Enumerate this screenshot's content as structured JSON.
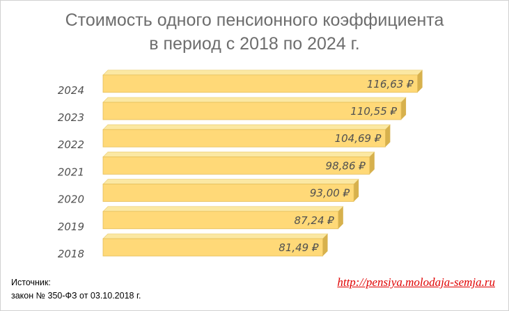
{
  "chart_data": {
    "type": "bar",
    "orientation": "horizontal",
    "title_lines": [
      "Стоимость одного пенсионного коэффициента",
      "в период с 2018 по 2024 г."
    ],
    "categories": [
      "2018",
      "2019",
      "2020",
      "2021",
      "2022",
      "2023",
      "2024"
    ],
    "values": [
      81.49,
      87.24,
      93.0,
      98.86,
      104.69,
      110.55,
      116.63
    ],
    "data_labels": [
      "81,49 ₽",
      "87,24 ₽",
      "93,00 ₽",
      "98,86 ₽",
      "104,69 ₽",
      "110,55 ₽",
      "116,63 ₽"
    ],
    "xlim": [
      0,
      117.5
    ],
    "grid": false,
    "legend": "none",
    "bar_color": "#ffd978",
    "bar_top_color": "#fbe8a3",
    "bar_side_color": "#d7b14d"
  },
  "footer": {
    "source_line1": "Источник:",
    "source_line2": "закон № 350-ФЗ  от 03.10.2018  г.",
    "link": "http://pensiya.molodaja-semja.ru"
  }
}
